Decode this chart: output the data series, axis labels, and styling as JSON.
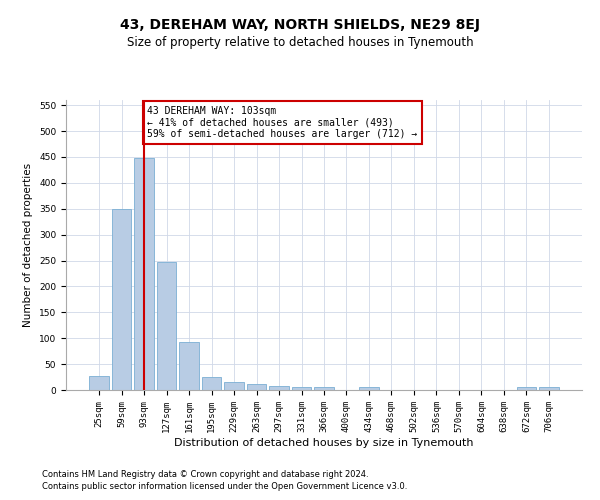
{
  "title": "43, DEREHAM WAY, NORTH SHIELDS, NE29 8EJ",
  "subtitle": "Size of property relative to detached houses in Tynemouth",
  "xlabel": "Distribution of detached houses by size in Tynemouth",
  "ylabel": "Number of detached properties",
  "categories": [
    "25sqm",
    "59sqm",
    "93sqm",
    "127sqm",
    "161sqm",
    "195sqm",
    "229sqm",
    "263sqm",
    "297sqm",
    "331sqm",
    "366sqm",
    "400sqm",
    "434sqm",
    "468sqm",
    "502sqm",
    "536sqm",
    "570sqm",
    "604sqm",
    "638sqm",
    "672sqm",
    "706sqm"
  ],
  "values": [
    28,
    350,
    448,
    248,
    93,
    25,
    15,
    12,
    8,
    6,
    6,
    0,
    5,
    0,
    0,
    0,
    0,
    0,
    0,
    5,
    5
  ],
  "bar_color": "#b8cce4",
  "bar_edge_color": "#7bafd4",
  "red_line_index": 2,
  "red_line_color": "#cc0000",
  "annotation_text": "43 DEREHAM WAY: 103sqm\n← 41% of detached houses are smaller (493)\n59% of semi-detached houses are larger (712) →",
  "annotation_box_color": "#ffffff",
  "annotation_box_edge": "#cc0000",
  "ylim": [
    0,
    560
  ],
  "yticks": [
    0,
    50,
    100,
    150,
    200,
    250,
    300,
    350,
    400,
    450,
    500,
    550
  ],
  "footer1": "Contains HM Land Registry data © Crown copyright and database right 2024.",
  "footer2": "Contains public sector information licensed under the Open Government Licence v3.0.",
  "background_color": "#ffffff",
  "grid_color": "#d0d8e8",
  "title_fontsize": 10,
  "subtitle_fontsize": 8.5,
  "ylabel_fontsize": 7.5,
  "xlabel_fontsize": 8,
  "tick_fontsize": 6.5,
  "footer_fontsize": 6
}
